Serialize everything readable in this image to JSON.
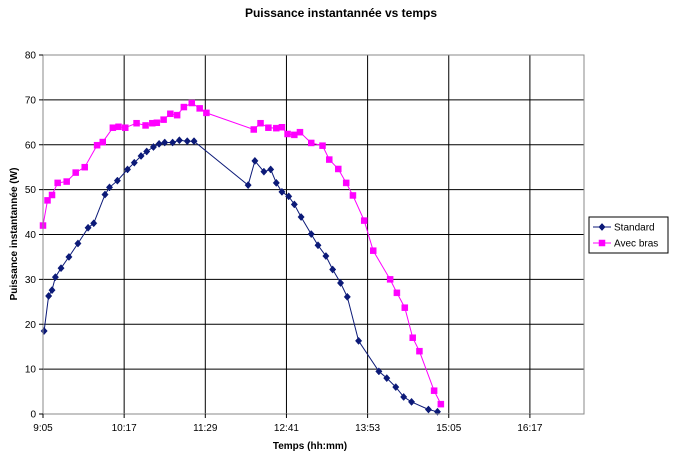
{
  "chart_data": {
    "type": "line",
    "title": "Puissance instantannée vs temps",
    "xlabel": "Temps (hh:mm)",
    "ylabel": "Puissance instantannée (W)",
    "x_range_minutes": [
      545,
      1025
    ],
    "x_ticks": [
      {
        "label": "9:05",
        "minutes": 545
      },
      {
        "label": "10:17",
        "minutes": 617
      },
      {
        "label": "11:29",
        "minutes": 689
      },
      {
        "label": "12:41",
        "minutes": 761
      },
      {
        "label": "13:53",
        "minutes": 833
      },
      {
        "label": "15:05",
        "minutes": 905
      },
      {
        "label": "16:17",
        "minutes": 977
      }
    ],
    "ylim": [
      0,
      80
    ],
    "y_ticks": [
      0,
      10,
      20,
      30,
      40,
      50,
      60,
      70,
      80
    ],
    "grid": true,
    "legend_position": "right",
    "series": [
      {
        "name": "Standard",
        "color": "#0c1a78",
        "marker": "diamond",
        "points": [
          [
            "9:06",
            18.5
          ],
          [
            "9:10",
            26.3
          ],
          [
            "9:13",
            27.6
          ],
          [
            "9:16",
            30.5
          ],
          [
            "9:21",
            32.5
          ],
          [
            "9:28",
            35.0
          ],
          [
            "9:36",
            38.0
          ],
          [
            "9:45",
            41.5
          ],
          [
            "9:50",
            42.5
          ],
          [
            "10:00",
            48.9
          ],
          [
            "10:04",
            50.5
          ],
          [
            "10:11",
            52.0
          ],
          [
            "10:20",
            54.5
          ],
          [
            "10:26",
            56.0
          ],
          [
            "10:32",
            57.5
          ],
          [
            "10:37",
            58.5
          ],
          [
            "10:43",
            59.5
          ],
          [
            "10:48",
            60.2
          ],
          [
            "10:53",
            60.5
          ],
          [
            "11:00",
            60.5
          ],
          [
            "11:06",
            61.0
          ],
          [
            "11:13",
            60.8
          ],
          [
            "11:19",
            60.8
          ],
          [
            "12:07",
            51.0
          ],
          [
            "12:13",
            56.4
          ],
          [
            "12:21",
            54.0
          ],
          [
            "12:27",
            54.5
          ],
          [
            "12:32",
            51.5
          ],
          [
            "12:37",
            49.5
          ],
          [
            "12:43",
            48.5
          ],
          [
            "12:48",
            46.7
          ],
          [
            "12:54",
            43.9
          ],
          [
            "13:03",
            40.1
          ],
          [
            "13:09",
            37.6
          ],
          [
            "13:16",
            35.2
          ],
          [
            "13:22",
            32.2
          ],
          [
            "13:29",
            29.2
          ],
          [
            "13:35",
            26.1
          ],
          [
            "13:45",
            16.3
          ],
          [
            "14:03",
            9.5
          ],
          [
            "14:10",
            8.0
          ],
          [
            "14:18",
            6.0
          ],
          [
            "14:25",
            3.8
          ],
          [
            "14:32",
            2.7
          ],
          [
            "14:47",
            1.0
          ],
          [
            "14:55",
            0.5
          ]
        ]
      },
      {
        "name": "Avec bras",
        "color": "#ff00ff",
        "marker": "square",
        "points": [
          [
            "9:05",
            42.0
          ],
          [
            "9:09",
            47.6
          ],
          [
            "9:13",
            48.8
          ],
          [
            "9:18",
            51.5
          ],
          [
            "9:26",
            51.8
          ],
          [
            "9:34",
            53.8
          ],
          [
            "9:42",
            55.0
          ],
          [
            "9:53",
            59.9
          ],
          [
            "9:58",
            60.6
          ],
          [
            "10:07",
            63.8
          ],
          [
            "10:12",
            64.0
          ],
          [
            "10:18",
            63.8
          ],
          [
            "10:28",
            64.8
          ],
          [
            "10:36",
            64.3
          ],
          [
            "10:42",
            64.8
          ],
          [
            "10:46",
            64.9
          ],
          [
            "10:52",
            65.6
          ],
          [
            "10:58",
            66.9
          ],
          [
            "11:04",
            66.6
          ],
          [
            "11:10",
            68.4
          ],
          [
            "11:17",
            69.3
          ],
          [
            "11:24",
            68.1
          ],
          [
            "11:30",
            67.1
          ],
          [
            "12:12",
            63.4
          ],
          [
            "12:18",
            64.8
          ],
          [
            "12:25",
            63.8
          ],
          [
            "12:32",
            63.7
          ],
          [
            "12:37",
            63.9
          ],
          [
            "12:42",
            62.4
          ],
          [
            "12:48",
            62.2
          ],
          [
            "12:53",
            62.8
          ],
          [
            "13:03",
            60.4
          ],
          [
            "13:13",
            59.8
          ],
          [
            "13:19",
            56.7
          ],
          [
            "13:27",
            54.6
          ],
          [
            "13:34",
            51.5
          ],
          [
            "13:40",
            48.7
          ],
          [
            "13:50",
            43.1
          ],
          [
            "13:58",
            36.4
          ],
          [
            "14:13",
            30.0
          ],
          [
            "14:19",
            27.0
          ],
          [
            "14:26",
            23.7
          ],
          [
            "14:33",
            17.0
          ],
          [
            "14:39",
            14.0
          ],
          [
            "14:52",
            5.2
          ],
          [
            "14:58",
            2.2
          ]
        ]
      }
    ]
  }
}
